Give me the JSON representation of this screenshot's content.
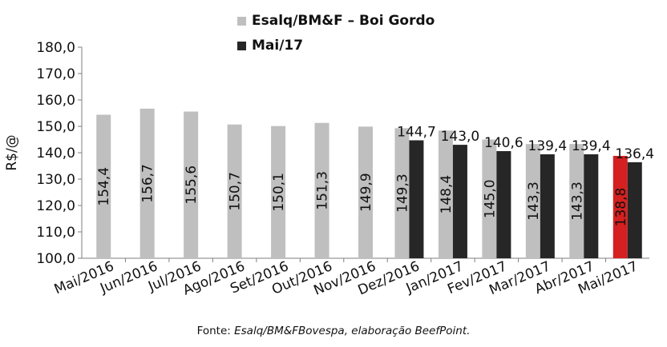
{
  "chart_data": {
    "type": "bar",
    "title": "",
    "ylabel": "R$/@",
    "xlabel": "",
    "ylim": [
      100,
      180
    ],
    "yticks": [
      "100,0",
      "110,0",
      "120,0",
      "130,0",
      "140,0",
      "150,0",
      "160,0",
      "170,0",
      "180,0"
    ],
    "grid": false,
    "legend_position": "top",
    "categories": [
      "Mai/2016",
      "Jun/2016",
      "Jul/2016",
      "Ago/2016",
      "Set/2016",
      "Out/2016",
      "Nov/2016",
      "Dez/2016",
      "Jan/2017",
      "Fev/2017",
      "Mar/2017",
      "Abr/2017",
      "Mai/2017"
    ],
    "series": [
      {
        "name": "Esalq/BM&F – Boi Gordo",
        "color": "#bfbfbf",
        "values": [
          154.4,
          156.7,
          155.6,
          150.7,
          150.1,
          151.3,
          149.9,
          149.3,
          148.4,
          145.0,
          143.3,
          143.3,
          138.8
        ],
        "labels": [
          "154,4",
          "156,7",
          "155,6",
          "150,7",
          "150,1",
          "151,3",
          "149,9",
          "149,3",
          "148,4",
          "145,0",
          "143,3",
          "143,3",
          "138,8"
        ],
        "highlight_index": 12,
        "highlight_color": "#d42020"
      },
      {
        "name": "Mai/17",
        "color": "#262626",
        "values": [
          null,
          null,
          null,
          null,
          null,
          null,
          null,
          144.7,
          143.0,
          140.6,
          139.4,
          139.4,
          136.4
        ],
        "labels": [
          "",
          "",
          "",
          "",
          "",
          "",
          "",
          "144,7",
          "143,0",
          "140,6",
          "139,4",
          "139,4",
          "136,4"
        ]
      }
    ]
  },
  "source_prefix": "Fonte:",
  "source_text": "Esalq/BM&FBovespa, elaboração BeefPoint."
}
